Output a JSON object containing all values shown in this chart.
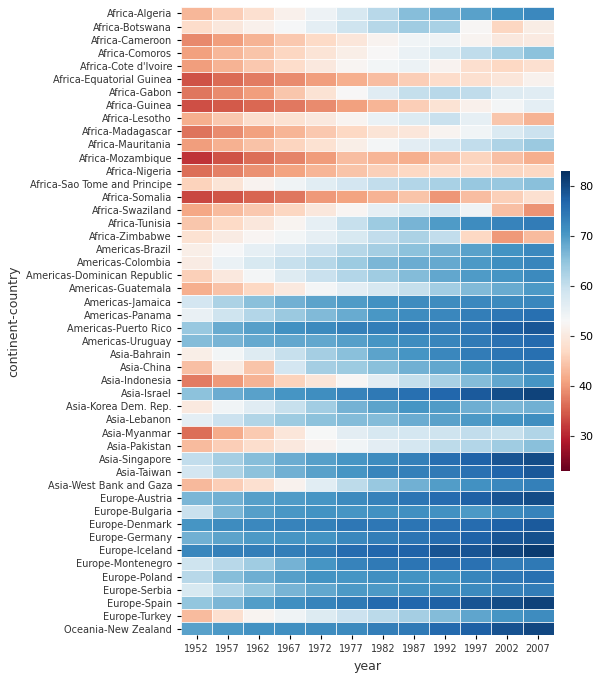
{
  "countries": [
    "Africa-Algeria",
    "Africa-Botswana",
    "Africa-Cameroon",
    "Africa-Comoros",
    "Africa-Cote d'Ivoire",
    "Africa-Equatorial Guinea",
    "Africa-Gabon",
    "Africa-Guinea",
    "Africa-Lesotho",
    "Africa-Madagascar",
    "Africa-Mauritania",
    "Africa-Mozambique",
    "Africa-Nigeria",
    "Africa-Sao Tome and Principe",
    "Africa-Somalia",
    "Africa-Swaziland",
    "Africa-Tunisia",
    "Africa-Zimbabwe",
    "Americas-Brazil",
    "Americas-Colombia",
    "Americas-Dominican Republic",
    "Americas-Guatemala",
    "Americas-Jamaica",
    "Americas-Panama",
    "Americas-Puerto Rico",
    "Americas-Uruguay",
    "Asia-Bahrain",
    "Asia-China",
    "Asia-Indonesia",
    "Asia-Israel",
    "Asia-Korea Dem. Rep.",
    "Asia-Lebanon",
    "Asia-Myanmar",
    "Asia-Pakistan",
    "Asia-Singapore",
    "Asia-Taiwan",
    "Asia-West Bank and Gaza",
    "Europe-Austria",
    "Europe-Bulgaria",
    "Europe-Denmark",
    "Europe-Germany",
    "Europe-Iceland",
    "Europe-Montenegro",
    "Europe-Poland",
    "Europe-Serbia",
    "Europe-Spain",
    "Europe-Turkey",
    "Oceania-New Zealand"
  ],
  "years": [
    1952,
    1957,
    1962,
    1967,
    1972,
    1977,
    1982,
    1987,
    1992,
    1997,
    2002,
    2007
  ],
  "data": {
    "Africa-Algeria": [
      43.1,
      45.7,
      48.3,
      51.4,
      54.5,
      58.0,
      61.4,
      65.8,
      67.7,
      69.2,
      71.0,
      72.3
    ],
    "Africa-Botswana": [
      47.6,
      49.6,
      51.5,
      53.3,
      56.0,
      59.3,
      61.5,
      63.6,
      62.7,
      52.6,
      46.6,
      50.7
    ],
    "Africa-Cameroon": [
      38.5,
      40.4,
      42.6,
      44.8,
      47.0,
      49.4,
      52.0,
      54.0,
      54.3,
      52.2,
      49.9,
      50.4
    ],
    "Africa-Comoros": [
      40.7,
      43.0,
      44.5,
      46.5,
      48.9,
      50.9,
      52.9,
      54.9,
      57.9,
      60.7,
      63.0,
      65.2
    ],
    "Africa-Cote d'Ivoire": [
      40.5,
      42.5,
      44.9,
      47.4,
      49.8,
      52.4,
      53.9,
      54.7,
      52.0,
      47.9,
      46.8,
      48.3
    ],
    "Africa-Equatorial Guinea": [
      34.0,
      35.9,
      37.5,
      38.9,
      40.5,
      42.0,
      43.7,
      45.7,
      47.5,
      48.2,
      49.3,
      51.6
    ],
    "Africa-Gabon": [
      37.0,
      38.9,
      40.5,
      44.6,
      48.7,
      52.8,
      56.6,
      60.2,
      61.4,
      60.5,
      56.8,
      56.7
    ],
    "Africa-Guinea": [
      33.6,
      34.6,
      35.7,
      37.2,
      38.8,
      40.8,
      42.9,
      45.6,
      48.6,
      51.5,
      53.7,
      56.0
    ],
    "Africa-Lesotho": [
      42.1,
      45.0,
      47.7,
      48.5,
      49.8,
      52.2,
      55.1,
      57.2,
      59.7,
      55.6,
      44.6,
      42.6
    ],
    "Africa-Madagascar": [
      36.7,
      38.9,
      40.8,
      42.9,
      44.9,
      46.9,
      48.9,
      49.3,
      52.2,
      54.1,
      57.3,
      59.4
    ],
    "Africa-Mauritania": [
      40.5,
      42.3,
      44.2,
      46.3,
      48.4,
      50.9,
      53.6,
      56.1,
      58.3,
      60.4,
      62.2,
      64.2
    ],
    "Africa-Mozambique": [
      31.3,
      33.8,
      36.2,
      38.1,
      40.3,
      43.8,
      42.8,
      42.1,
      44.3,
      46.3,
      44.0,
      42.1
    ],
    "Africa-Nigeria": [
      36.3,
      37.8,
      39.4,
      41.0,
      42.8,
      44.5,
      45.8,
      46.9,
      47.5,
      47.5,
      46.6,
      46.9
    ],
    "Africa-Sao Tome and Principe": [
      46.0,
      48.9,
      51.9,
      54.4,
      56.5,
      58.6,
      60.4,
      61.7,
      62.7,
      64.3,
      64.3,
      65.5
    ],
    "Africa-Somalia": [
      32.9,
      34.1,
      35.5,
      37.0,
      40.0,
      41.0,
      42.6,
      44.5,
      39.7,
      43.8,
      45.9,
      48.2
    ],
    "Africa-Swaziland": [
      41.4,
      43.4,
      44.9,
      46.6,
      49.6,
      52.5,
      55.6,
      57.7,
      58.5,
      54.3,
      43.9,
      39.6
    ],
    "Africa-Tunisia": [
      44.6,
      47.1,
      49.6,
      52.1,
      55.6,
      59.8,
      64.0,
      66.9,
      70.0,
      71.9,
      73.0,
      73.9
    ],
    "Africa-Zimbabwe": [
      48.5,
      50.5,
      52.4,
      53.9,
      55.6,
      57.7,
      60.4,
      62.4,
      60.4,
      46.8,
      40.0,
      43.5
    ],
    "Americas-Brazil": [
      50.9,
      53.3,
      55.7,
      57.6,
      59.5,
      61.5,
      63.3,
      65.2,
      67.1,
      69.4,
      71.0,
      72.4
    ],
    "Americas-Colombia": [
      50.6,
      55.1,
      57.9,
      59.9,
      61.6,
      63.8,
      66.7,
      67.8,
      68.4,
      70.3,
      71.7,
      72.9
    ],
    "Americas-Dominican Republic": [
      45.9,
      49.8,
      53.5,
      56.8,
      59.6,
      61.8,
      63.7,
      66.0,
      68.5,
      69.9,
      70.8,
      72.2
    ],
    "Americas-Guatemala": [
      42.0,
      44.1,
      46.9,
      50.0,
      53.7,
      56.0,
      58.1,
      60.1,
      63.4,
      66.3,
      68.0,
      70.3
    ],
    "Americas-Jamaica": [
      58.5,
      62.6,
      65.6,
      67.5,
      69.0,
      70.1,
      71.2,
      71.8,
      71.9,
      72.3,
      72.0,
      72.6
    ],
    "Americas-Panama": [
      55.2,
      59.2,
      61.8,
      64.1,
      66.2,
      68.0,
      70.5,
      71.8,
      72.5,
      73.7,
      74.7,
      75.5
    ],
    "Americas-Puerto Rico": [
      64.3,
      68.0,
      69.6,
      71.1,
      72.2,
      73.4,
      73.8,
      74.6,
      73.9,
      74.9,
      77.8,
      78.7
    ],
    "Americas-Uruguay": [
      66.1,
      67.0,
      68.3,
      68.5,
      68.7,
      69.5,
      70.8,
      71.9,
      72.9,
      74.2,
      75.3,
      76.4
    ],
    "Asia-Bahrain": [
      50.9,
      53.8,
      56.9,
      59.9,
      63.3,
      65.6,
      69.1,
      70.8,
      72.6,
      73.9,
      74.8,
      75.6
    ],
    "Asia-China": [
      44.0,
      50.5,
      44.5,
      58.4,
      63.1,
      63.9,
      65.5,
      67.3,
      68.7,
      70.4,
      72.0,
      73.0
    ],
    "Asia-Indonesia": [
      37.5,
      39.9,
      42.5,
      46.0,
      49.2,
      52.7,
      56.2,
      60.1,
      62.7,
      66.0,
      68.6,
      70.6
    ],
    "Asia-Israel": [
      65.4,
      67.8,
      69.4,
      70.8,
      71.6,
      73.1,
      74.5,
      75.6,
      76.9,
      78.3,
      79.7,
      80.7
    ],
    "Asia-Korea Dem. Rep.": [
      50.1,
      54.1,
      56.7,
      59.9,
      63.4,
      67.2,
      69.1,
      70.6,
      69.9,
      67.7,
      66.7,
      67.3
    ],
    "Asia-Lebanon": [
      55.9,
      59.5,
      62.1,
      63.9,
      65.4,
      66.1,
      66.0,
      67.9,
      69.3,
      70.3,
      71.0,
      71.6
    ],
    "Asia-Myanmar": [
      36.3,
      41.9,
      45.1,
      49.4,
      53.1,
      56.1,
      58.1,
      58.3,
      59.3,
      60.3,
      59.9,
      62.1
    ],
    "Asia-Pakistan": [
      43.4,
      45.6,
      47.7,
      49.8,
      51.9,
      54.1,
      56.2,
      58.2,
      60.8,
      61.8,
      63.6,
      65.5
    ],
    "Asia-Singapore": [
      60.4,
      63.2,
      65.8,
      67.9,
      69.5,
      70.8,
      71.8,
      73.6,
      75.8,
      77.2,
      78.8,
      79.9
    ],
    "Asia-Taiwan": [
      58.5,
      62.4,
      65.2,
      67.5,
      69.4,
      70.6,
      72.8,
      73.4,
      74.3,
      75.3,
      77.0,
      78.4
    ],
    "Asia-West Bank and Gaza": [
      43.2,
      45.7,
      48.1,
      51.6,
      56.5,
      60.8,
      64.4,
      67.4,
      69.7,
      71.1,
      72.4,
      73.4
    ],
    "Europe-Austria": [
      66.8,
      67.5,
      69.5,
      70.1,
      70.6,
      72.2,
      73.2,
      74.9,
      76.0,
      77.5,
      79.0,
      79.8
    ],
    "Europe-Bulgaria": [
      59.6,
      66.6,
      69.5,
      70.4,
      70.9,
      70.8,
      71.1,
      71.3,
      71.2,
      70.3,
      72.1,
      73.0
    ],
    "Europe-Denmark": [
      70.8,
      71.8,
      72.4,
      73.0,
      73.5,
      74.7,
      74.6,
      74.8,
      75.3,
      76.1,
      77.2,
      78.3
    ],
    "Europe-Germany": [
      67.5,
      69.1,
      70.3,
      70.8,
      71.0,
      72.5,
      73.8,
      74.8,
      76.1,
      77.3,
      78.7,
      79.4
    ],
    "Europe-Iceland": [
      72.5,
      73.5,
      73.7,
      73.7,
      74.5,
      76.1,
      76.9,
      77.2,
      78.8,
      79.0,
      80.5,
      81.8
    ],
    "Europe-Montenegro": [
      59.2,
      61.4,
      63.7,
      67.2,
      70.6,
      73.1,
      74.1,
      74.9,
      75.4,
      75.4,
      73.9,
      74.5
    ],
    "Europe-Poland": [
      61.3,
      65.8,
      67.6,
      69.6,
      70.9,
      70.7,
      71.3,
      70.9,
      70.9,
      72.8,
      74.7,
      75.6
    ],
    "Europe-Serbia": [
      57.9,
      61.7,
      64.5,
      66.9,
      68.7,
      70.3,
      70.2,
      71.2,
      71.7,
      72.2,
      73.2,
      74.0
    ],
    "Europe-Spain": [
      64.9,
      66.7,
      69.7,
      71.4,
      73.1,
      74.4,
      76.3,
      76.9,
      77.6,
      78.8,
      79.8,
      80.9
    ],
    "Europe-Turkey": [
      43.6,
      48.1,
      52.1,
      54.3,
      57.0,
      59.5,
      61.0,
      63.1,
      66.0,
      68.8,
      70.8,
      71.8
    ],
    "Oceania-New Zealand": [
      69.4,
      70.3,
      71.2,
      71.5,
      71.9,
      72.2,
      73.8,
      74.3,
      76.3,
      77.6,
      79.1,
      80.2
    ]
  },
  "vmin": 23,
  "vmax": 83,
  "colorbar_ticks": [
    30,
    40,
    50,
    60,
    70,
    80
  ],
  "xlabel": "year",
  "ylabel": "continent-country",
  "figsize": [
    6.0,
    6.8
  ],
  "dpi": 100,
  "bg_color": "#ffffff",
  "linecolor": "#ffffff",
  "linewidths": 0.5,
  "tick_fontsize": 7.0,
  "label_fontsize": 9.0,
  "cbar_fontsize": 8.0
}
